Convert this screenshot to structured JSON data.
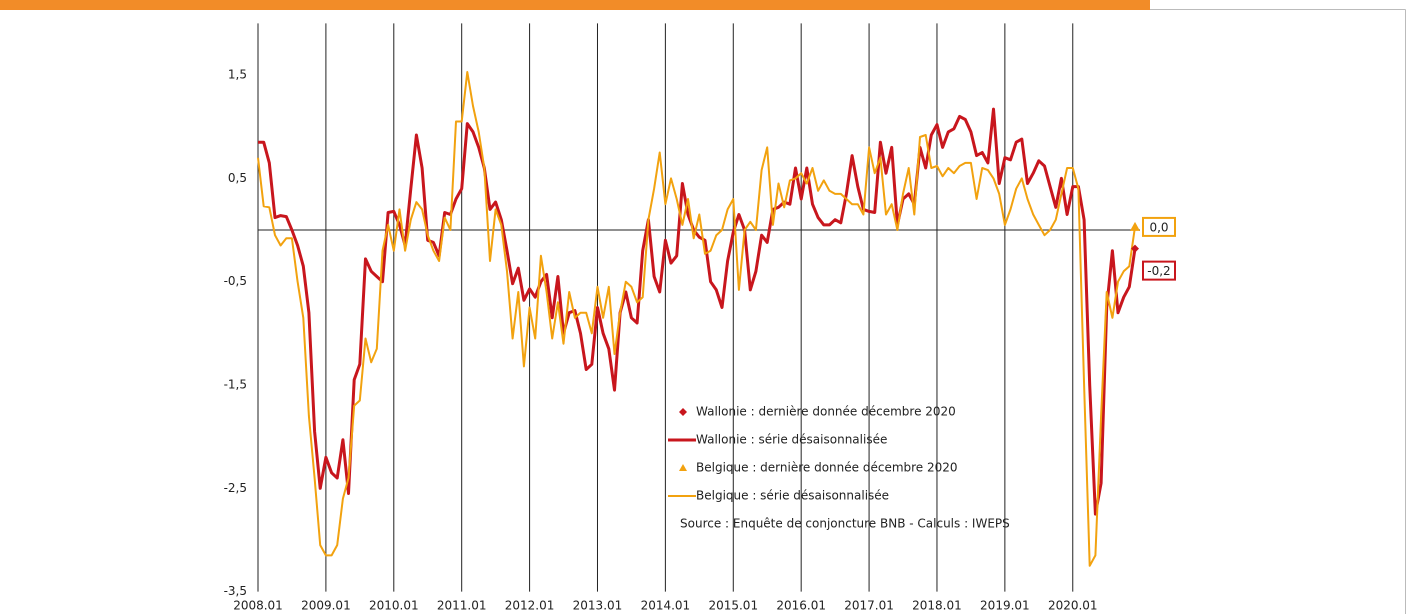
{
  "chart_data": {
    "type": "line",
    "categories": [
      "2008.01",
      null,
      null,
      null,
      null,
      null,
      null,
      null,
      null,
      null,
      null,
      null,
      "2009.01",
      null,
      null,
      null,
      null,
      null,
      null,
      null,
      null,
      null,
      null,
      null,
      "2010.01",
      null,
      null,
      null,
      null,
      null,
      null,
      null,
      null,
      null,
      null,
      null,
      "2011.01",
      null,
      null,
      null,
      null,
      null,
      null,
      null,
      null,
      null,
      null,
      null,
      "2012.01",
      null,
      null,
      null,
      null,
      null,
      null,
      null,
      null,
      null,
      null,
      null,
      "2013.01",
      null,
      null,
      null,
      null,
      null,
      null,
      null,
      null,
      null,
      null,
      null,
      "2014.01",
      null,
      null,
      null,
      null,
      null,
      null,
      null,
      null,
      null,
      null,
      null,
      "2015.01",
      null,
      null,
      null,
      null,
      null,
      null,
      null,
      null,
      null,
      null,
      null,
      "2016.01",
      null,
      null,
      null,
      null,
      null,
      null,
      null,
      null,
      null,
      null,
      null,
      "2017.01",
      null,
      null,
      null,
      null,
      null,
      null,
      null,
      null,
      null,
      null,
      null,
      "2018.01",
      null,
      null,
      null,
      null,
      null,
      null,
      null,
      null,
      null,
      null,
      null,
      "2019.01",
      null,
      null,
      null,
      null,
      null,
      null,
      null,
      null,
      null,
      null,
      null,
      "2020.01",
      null,
      null,
      null,
      null,
      null,
      null,
      null,
      null,
      null,
      null,
      null
    ],
    "ylim": [
      -3.5,
      2
    ],
    "yticks": [
      {
        "value": 1.5,
        "label": "1,5"
      },
      {
        "value": 0.5,
        "label": "0,5"
      },
      {
        "value": -0.5,
        "label": "-0,5"
      },
      {
        "value": -1.5,
        "label": "-1,5"
      },
      {
        "value": -2.5,
        "label": "-2,5"
      },
      {
        "value": -3.5,
        "label": "-3,5"
      }
    ],
    "series": [
      {
        "name": "Wallonie : série désaisonnalisée",
        "color": "#c8161d",
        "width": 3,
        "last_point": {
          "name": "Wallonie : dernière donnée décembre 2020",
          "marker": "diamond",
          "value_label": "-0,2"
        },
        "values": [
          0.85,
          0.85,
          0.65,
          0.12,
          0.14,
          0.13,
          0.0,
          -0.15,
          -0.35,
          -0.8,
          -1.95,
          -2.5,
          -2.2,
          -2.35,
          -2.4,
          -2.03,
          -2.55,
          -1.45,
          -1.3,
          -0.28,
          -0.4,
          -0.45,
          -0.5,
          0.17,
          0.18,
          0.05,
          -0.15,
          0.4,
          0.92,
          0.6,
          -0.1,
          -0.12,
          -0.25,
          0.17,
          0.15,
          0.3,
          0.4,
          1.03,
          0.95,
          0.8,
          0.6,
          0.2,
          0.27,
          0.1,
          -0.2,
          -0.52,
          -0.37,
          -0.68,
          -0.57,
          -0.65,
          -0.5,
          -0.43,
          -0.85,
          -0.45,
          -1.0,
          -0.8,
          -0.78,
          -1.0,
          -1.35,
          -1.3,
          -0.75,
          -1.0,
          -1.15,
          -1.55,
          -0.8,
          -0.6,
          -0.85,
          -0.9,
          -0.2,
          0.1,
          -0.45,
          -0.6,
          -0.1,
          -0.32,
          -0.25,
          0.45,
          0.15,
          0.0,
          -0.07,
          -0.1,
          -0.5,
          -0.58,
          -0.75,
          -0.3,
          -0.02,
          0.15,
          0.0,
          -0.58,
          -0.4,
          -0.05,
          -0.12,
          0.2,
          0.22,
          0.27,
          0.25,
          0.6,
          0.3,
          0.6,
          0.25,
          0.12,
          0.05,
          0.05,
          0.1,
          0.07,
          0.35,
          0.72,
          0.42,
          0.2,
          0.18,
          0.17,
          0.85,
          0.55,
          0.8,
          0.05,
          0.3,
          0.35,
          0.25,
          0.8,
          0.6,
          0.92,
          1.02,
          0.8,
          0.95,
          0.98,
          1.1,
          1.07,
          0.95,
          0.72,
          0.75,
          0.65,
          1.17,
          0.45,
          0.7,
          0.68,
          0.85,
          0.88,
          0.45,
          0.55,
          0.67,
          0.62,
          0.42,
          0.22,
          0.5,
          0.15,
          0.42,
          0.42,
          0.1,
          -1.5,
          -2.75,
          -2.45,
          -0.75,
          -0.2,
          -0.8,
          -0.65,
          -0.55,
          -0.18
        ]
      },
      {
        "name": "Belgique : série désaisonnalisée",
        "color": "#f2a20f",
        "width": 2,
        "last_point": {
          "name": "Belgique : dernière donnée décembre 2020",
          "marker": "triangle",
          "value_label": "0,0"
        },
        "values": [
          0.7,
          0.23,
          0.22,
          -0.05,
          -0.15,
          -0.08,
          -0.08,
          -0.5,
          -0.85,
          -1.8,
          -2.4,
          -3.05,
          -3.15,
          -3.15,
          -3.05,
          -2.6,
          -2.4,
          -1.7,
          -1.65,
          -1.05,
          -1.28,
          -1.15,
          -0.2,
          0.05,
          -0.2,
          0.2,
          -0.2,
          0.1,
          0.27,
          0.2,
          -0.05,
          -0.2,
          -0.3,
          0.12,
          0.0,
          1.05,
          1.05,
          1.53,
          1.2,
          0.95,
          0.6,
          -0.3,
          0.2,
          0.05,
          -0.4,
          -1.05,
          -0.6,
          -1.32,
          -0.75,
          -1.05,
          -0.25,
          -0.6,
          -1.05,
          -0.7,
          -1.1,
          -0.6,
          -0.85,
          -0.8,
          -0.8,
          -1.0,
          -0.55,
          -0.85,
          -0.55,
          -1.2,
          -0.8,
          -0.5,
          -0.55,
          -0.7,
          -0.65,
          0.1,
          0.4,
          0.75,
          0.25,
          0.5,
          0.3,
          0.05,
          0.3,
          -0.08,
          0.15,
          -0.23,
          -0.2,
          -0.05,
          0.0,
          0.2,
          0.3,
          -0.58,
          0.0,
          0.08,
          0.0,
          0.58,
          0.8,
          0.05,
          0.45,
          0.22,
          0.48,
          0.5,
          0.55,
          0.45,
          0.6,
          0.38,
          0.48,
          0.38,
          0.35,
          0.35,
          0.3,
          0.25,
          0.25,
          0.15,
          0.8,
          0.55,
          0.7,
          0.15,
          0.25,
          0.0,
          0.35,
          0.6,
          0.15,
          0.9,
          0.92,
          0.6,
          0.62,
          0.52,
          0.6,
          0.55,
          0.62,
          0.65,
          0.65,
          0.3,
          0.6,
          0.58,
          0.5,
          0.35,
          0.05,
          0.2,
          0.4,
          0.5,
          0.3,
          0.15,
          0.05,
          -0.05,
          0.0,
          0.1,
          0.35,
          0.6,
          0.6,
          0.4,
          -1.5,
          -3.25,
          -3.15,
          -1.8,
          -0.6,
          -0.85,
          -0.5,
          -0.4,
          -0.35,
          0.03
        ]
      }
    ],
    "source": "Source : Enquête de conjoncture BNB - Calculs : IWEPS"
  }
}
